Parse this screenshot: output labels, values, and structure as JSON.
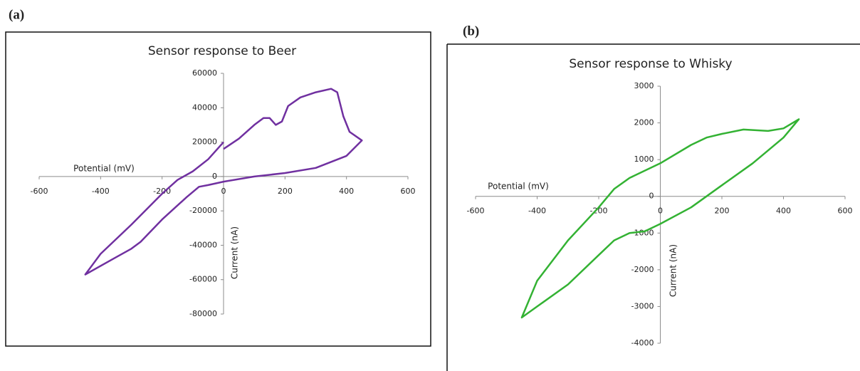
{
  "chart_data": [
    {
      "type": "line",
      "panel_label": "(a)",
      "title": "Sensor response to Beer",
      "x_label": "Potential (mV)",
      "y_label": "Current (nA)",
      "x": [
        0,
        50,
        100,
        130,
        150,
        170,
        190,
        210,
        250,
        300,
        350,
        370,
        390,
        410,
        450,
        400,
        300,
        200,
        100,
        0,
        -50,
        -80,
        -120,
        -200,
        -270,
        -300,
        -350,
        -450,
        -400,
        -300,
        -200,
        -150,
        -100,
        -50,
        0
      ],
      "values": [
        16000,
        22000,
        30000,
        34000,
        34000,
        30000,
        32000,
        41000,
        46000,
        49000,
        51000,
        49000,
        35000,
        26000,
        21000,
        12000,
        5000,
        2000,
        0,
        -3000,
        -5000,
        -6000,
        -12000,
        -25000,
        -38000,
        -42000,
        -47000,
        -57000,
        -45000,
        -28000,
        -10000,
        -2000,
        3000,
        10000,
        20000
      ],
      "color": "#7030a0",
      "xlim": [
        -600,
        600
      ],
      "xticks": [
        -600,
        -400,
        -200,
        0,
        200,
        400,
        600
      ],
      "ylim": [
        -80000,
        60000
      ],
      "yticks": [
        -80000,
        -60000,
        -40000,
        -20000,
        0,
        20000,
        40000,
        60000
      ]
    },
    {
      "type": "line",
      "panel_label": "(b)",
      "title": "Sensor response to Whisky",
      "x_label": "Potential (mV)",
      "y_label": "Current (nA)",
      "x": [
        0,
        100,
        150,
        200,
        270,
        350,
        400,
        450,
        400,
        300,
        200,
        150,
        100,
        0,
        -50,
        -100,
        -150,
        -200,
        -300,
        -400,
        -450,
        -400,
        -300,
        -200,
        -150,
        -100,
        0
      ],
      "values": [
        900,
        1400,
        1600,
        1700,
        1820,
        1780,
        1850,
        2100,
        1600,
        900,
        300,
        0,
        -300,
        -750,
        -950,
        -1000,
        -1200,
        -1600,
        -2400,
        -3000,
        -3300,
        -2300,
        -1200,
        -300,
        200,
        500,
        900
      ],
      "color": "#33b233",
      "xlim": [
        -600,
        600
      ],
      "xticks": [
        -600,
        -400,
        -200,
        0,
        200,
        400,
        600
      ],
      "ylim": [
        -4000,
        3000
      ],
      "yticks": [
        -4000,
        -3000,
        -2000,
        -1000,
        0,
        1000,
        2000,
        3000
      ]
    }
  ]
}
